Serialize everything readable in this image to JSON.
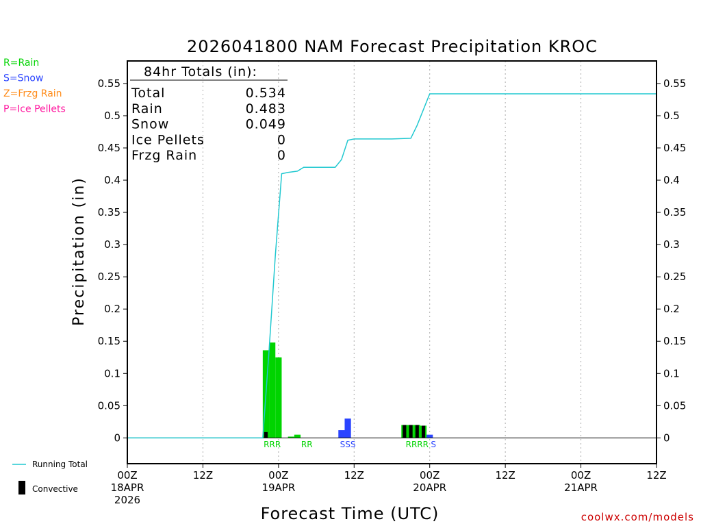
{
  "chart_data": {
    "type": "bar",
    "title": "2026041800 NAM Forecast Precipitation KROC",
    "xlabel": "Forecast Time (UTC)",
    "ylabel": "Precipitation (in)",
    "x_units": "hours since 2026-04-18 00Z",
    "xlim": [
      0,
      84
    ],
    "ylim": [
      -0.04,
      0.585
    ],
    "yticks": [
      0,
      0.05,
      0.1,
      0.15,
      0.2,
      0.25,
      0.3,
      0.35,
      0.4,
      0.45,
      0.5,
      0.55
    ],
    "ytick_labels": [
      "0",
      "0.05",
      "0.1",
      "0.15",
      "0.2",
      "0.25",
      "0.3",
      "0.35",
      "0.4",
      "0.45",
      "0.5",
      "0.55"
    ],
    "xticks": [
      {
        "x": 0,
        "lines": [
          "00Z",
          "18APR",
          "2026"
        ]
      },
      {
        "x": 12,
        "lines": [
          "12Z"
        ]
      },
      {
        "x": 24,
        "lines": [
          "00Z",
          "19APR"
        ]
      },
      {
        "x": 36,
        "lines": [
          "12Z"
        ]
      },
      {
        "x": 48,
        "lines": [
          "00Z",
          "20APR"
        ]
      },
      {
        "x": 60,
        "lines": [
          "12Z"
        ]
      },
      {
        "x": 72,
        "lines": [
          "00Z",
          "21APR"
        ]
      },
      {
        "x": 84,
        "lines": [
          "12Z"
        ]
      }
    ],
    "grid_x": [
      12,
      24,
      36,
      48,
      60,
      72
    ],
    "series": [
      {
        "name": "Rain",
        "type": "bar",
        "color": "#00d400",
        "x": [
          22,
          23,
          24,
          26,
          27,
          44,
          45,
          46,
          47
        ],
        "values": [
          0.136,
          0.148,
          0.125,
          0.002,
          0.005,
          0.02,
          0.02,
          0.02,
          0.019
        ]
      },
      {
        "name": "Snow",
        "type": "bar",
        "color": "#2a44ff",
        "x": [
          34,
          35,
          48
        ],
        "values": [
          0.012,
          0.03,
          0.005
        ]
      },
      {
        "name": "Convective",
        "type": "bar",
        "color": "#000000",
        "x": [
          22,
          44,
          45,
          46,
          47
        ],
        "values": [
          0.009,
          0.02,
          0.02,
          0.02,
          0.019
        ]
      },
      {
        "name": "Running Total",
        "type": "line",
        "color": "#20c8d0",
        "x": [
          0,
          21.5,
          22.5,
          23.5,
          24.5,
          25.5,
          27,
          28,
          33,
          34,
          35,
          36,
          40,
          42,
          45,
          46,
          48,
          60,
          84
        ],
        "values": [
          0,
          0,
          0.136,
          0.284,
          0.41,
          0.412,
          0.414,
          0.42,
          0.42,
          0.432,
          0.462,
          0.464,
          0.464,
          0.464,
          0.465,
          0.485,
          0.534,
          0.534,
          0.534
        ]
      }
    ],
    "precip_type_markers": [
      {
        "x": 23,
        "text": "RRR",
        "color": "#00d400"
      },
      {
        "x": 28.5,
        "text": "RR",
        "color": "#00d400"
      },
      {
        "x": 35,
        "text": "SSS",
        "color": "#2a44ff"
      },
      {
        "x": 46,
        "text": "RRRR",
        "color": "#00d400"
      },
      {
        "x": 48.6,
        "text": "S",
        "color": "#2a44ff"
      }
    ],
    "type_legend": [
      {
        "text": "R=Rain",
        "color": "#00d400"
      },
      {
        "text": "S=Snow",
        "color": "#2a44ff"
      },
      {
        "text": "Z=Frzg Rain",
        "color": "#ff8c1a"
      },
      {
        "text": "P=Ice Pellets",
        "color": "#ff1aa0"
      }
    ],
    "totals": {
      "heading": "84hr Totals (in):",
      "rows": [
        {
          "label": "Total",
          "value": "0.534"
        },
        {
          "label": "Rain",
          "value": "0.483"
        },
        {
          "label": "Snow",
          "value": "0.049"
        },
        {
          "label": "Ice Pellets",
          "value": "0"
        },
        {
          "label": "Frzg Rain",
          "value": "0"
        }
      ]
    },
    "bottom_legend": {
      "running_total": "Running Total",
      "convective": "Convective"
    },
    "credit": "coolwx.com/models"
  }
}
